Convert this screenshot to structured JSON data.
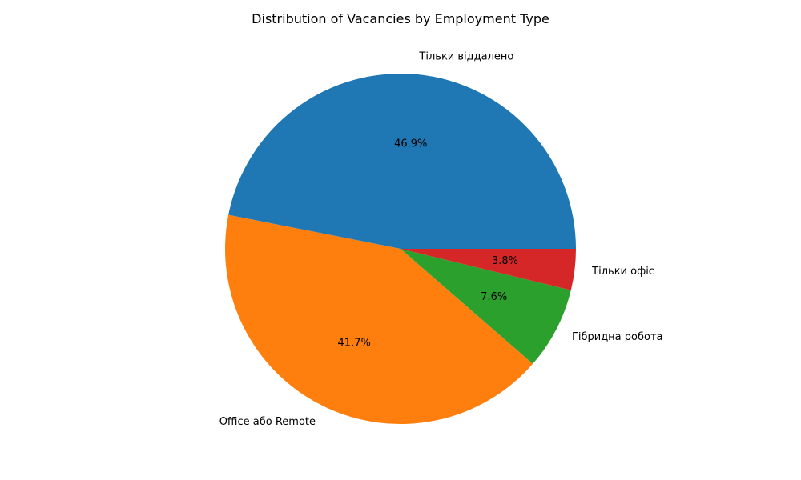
{
  "chart_data": {
    "type": "pie",
    "title": "Distribution of Vacancies by Employment Type",
    "start_angle": "0 degrees (3 o'clock), counter-clockwise",
    "slices": [
      {
        "label": "Тільки віддалено",
        "value": 46.9,
        "pct_label": "46.9%",
        "color": "#1f77b4"
      },
      {
        "label": "Office або Remote",
        "value": 41.7,
        "pct_label": "41.7%",
        "color": "#ff7f0e"
      },
      {
        "label": "Гібридна робота",
        "value": 7.6,
        "pct_label": "7.6%",
        "color": "#2ca02c"
      },
      {
        "label": "Тільки офіс",
        "value": 3.8,
        "pct_label": "3.8%",
        "color": "#d62728"
      }
    ]
  }
}
